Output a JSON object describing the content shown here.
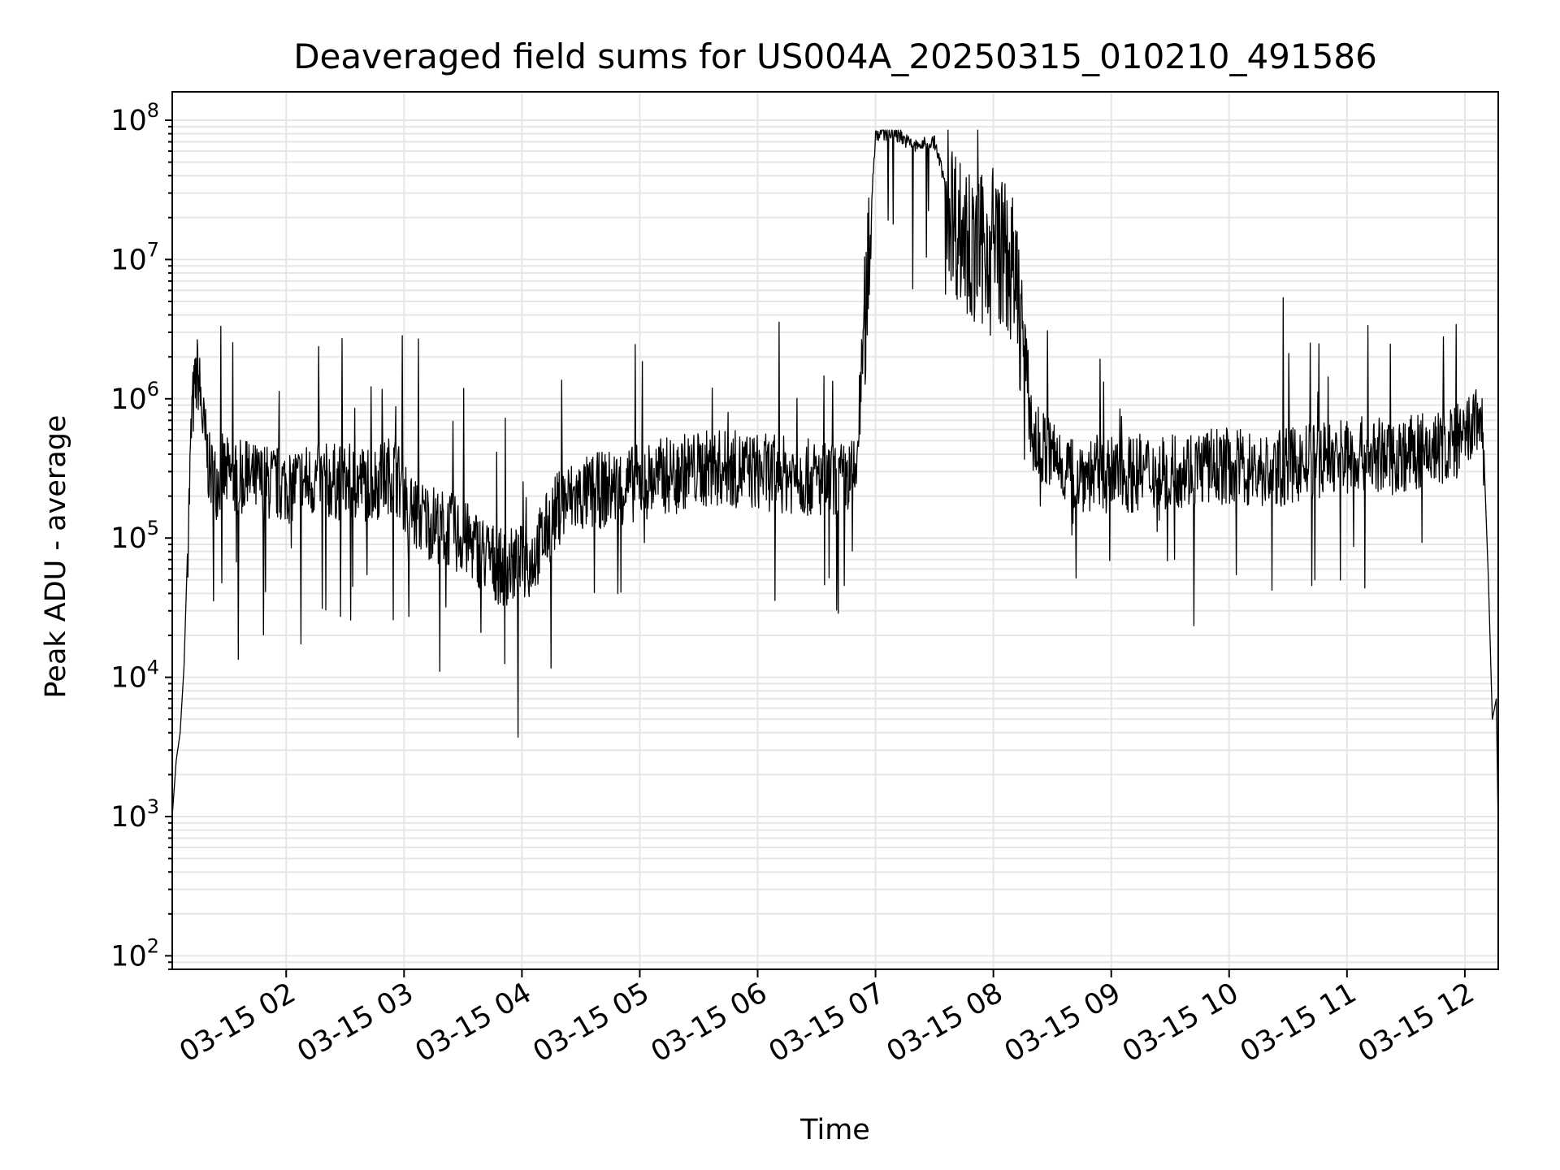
{
  "chart_data": {
    "type": "line",
    "title": "Deaveraged field sums for US004A_20250315_010210_491586",
    "xlabel": "Time",
    "ylabel": "Peak ADU - average",
    "yscale": "log",
    "ylim": [
      80,
      160000000
    ],
    "xlim": [
      "03-15 01:02",
      "03-15 12:17"
    ],
    "grid": true,
    "line_color": "#000000",
    "grid_color": "#e6e6e6",
    "y_ticks": [
      {
        "base": "10",
        "exp": "2",
        "value": 100
      },
      {
        "base": "10",
        "exp": "3",
        "value": 1000
      },
      {
        "base": "10",
        "exp": "4",
        "value": 10000
      },
      {
        "base": "10",
        "exp": "5",
        "value": 100000
      },
      {
        "base": "10",
        "exp": "6",
        "value": 1000000
      },
      {
        "base": "10",
        "exp": "7",
        "value": 10000000
      },
      {
        "base": "10",
        "exp": "8",
        "value": 100000000
      }
    ],
    "x_ticks": [
      "03-15 02",
      "03-15 03",
      "03-15 04",
      "03-15 05",
      "03-15 06",
      "03-15 07",
      "03-15 08",
      "03-15 09",
      "03-15 10",
      "03-15 11",
      "03-15 12"
    ],
    "series": [
      {
        "x": [
          "03-15 01:02",
          "03-15 01:04",
          "03-15 01:06",
          "03-15 01:08",
          "03-15 01:10",
          "03-15 01:12",
          "03-15 01:15",
          "03-15 01:18",
          "03-15 01:21",
          "03-15 01:24",
          "03-15 01:27",
          "03-15 01:30",
          "03-15 01:40",
          "03-15 01:50",
          "03-15 02:00",
          "03-15 02:15",
          "03-15 02:30",
          "03-15 02:45",
          "03-15 02:55",
          "03-15 03:05",
          "03-15 03:20",
          "03-15 03:35",
          "03-15 03:50",
          "03-15 04:05",
          "03-15 04:20",
          "03-15 04:40",
          "03-15 05:00",
          "03-15 05:20",
          "03-15 05:40",
          "03-15 06:00",
          "03-15 06:20",
          "03-15 06:40",
          "03-15 06:50",
          "03-15 06:55",
          "03-15 07:00",
          "03-15 07:10",
          "03-15 07:20",
          "03-15 07:30",
          "03-15 07:40",
          "03-15 07:50",
          "03-15 08:00",
          "03-15 08:10",
          "03-15 08:15",
          "03-15 08:20",
          "03-15 08:40",
          "03-15 09:00",
          "03-15 09:20",
          "03-15 09:40",
          "03-15 10:00",
          "03-15 10:20",
          "03-15 10:40",
          "03-15 11:00",
          "03-15 11:20",
          "03-15 11:40",
          "03-15 12:00",
          "03-15 12:08",
          "03-15 12:10",
          "03-15 12:12",
          "03-15 12:14",
          "03-15 12:16",
          "03-15 12:17"
        ],
        "y": [
          1000,
          2500,
          4000,
          12000,
          100000,
          800000,
          1600000,
          600000,
          300000,
          250000,
          300000,
          280000,
          260000,
          250000,
          240000,
          260000,
          250000,
          250000,
          300000,
          150000,
          120000,
          90000,
          60000,
          70000,
          180000,
          220000,
          250000,
          300000,
          320000,
          300000,
          280000,
          250000,
          280000,
          5000000,
          80000000,
          80000000,
          65000000,
          70000000,
          20000000,
          10000000,
          15000000,
          8000000,
          3000000,
          500000,
          300000,
          280000,
          300000,
          320000,
          330000,
          300000,
          350000,
          400000,
          380000,
          420000,
          500000,
          800000,
          300000,
          50000,
          5000,
          7000,
          800
        ]
      }
    ]
  }
}
